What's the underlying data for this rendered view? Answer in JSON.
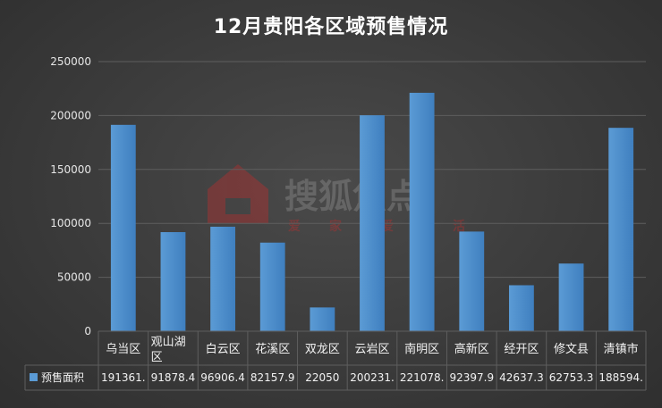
{
  "chart_data": {
    "type": "bar",
    "title": "12月贵阳各区域预售情况",
    "categories": [
      "乌当区",
      "观山湖区",
      "白云区",
      "花溪区",
      "双龙区",
      "云岩区",
      "南明区",
      "高新区",
      "经开区",
      "修文县",
      "清镇市"
    ],
    "series": [
      {
        "name": "预售面积",
        "values": [
          191361,
          91878.4,
          96906.4,
          82157.9,
          22050,
          200231,
          221078,
          92397.9,
          42637.3,
          62753.3,
          188594
        ],
        "table_labels": [
          "191361.",
          "91878.4",
          "96906.4",
          "82157.9",
          "22050",
          "200231.",
          "221078.",
          "92397.9",
          "42637.3",
          "62753.3",
          "188594."
        ]
      }
    ],
    "y_ticks": [
      "0",
      "50000",
      "100000",
      "150000",
      "200000",
      "250000"
    ],
    "ylim": [
      0,
      250000
    ],
    "grid": true,
    "legend": "data-table-row",
    "colors": {
      "bar": "#5b9bd5",
      "bar_dark": "#3f7fbf",
      "background": "#3a3a3a",
      "grid": "#5e5e5e",
      "text": "#f2f2f2"
    }
  },
  "watermark": {
    "brand_text": "搜狐焦点",
    "slogan_chars": [
      "爱",
      "家",
      "爱",
      "生",
      "活"
    ]
  }
}
